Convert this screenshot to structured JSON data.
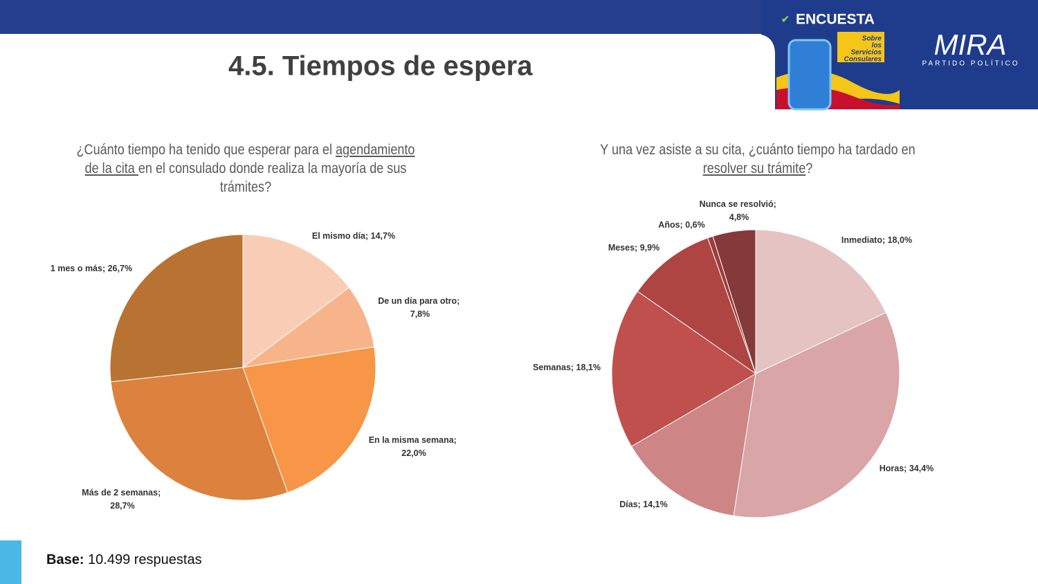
{
  "title": "4.5. Tiempos de espera",
  "footer": {
    "label": "Base:",
    "text": "10.499 respuestas"
  },
  "logo": {
    "survey": "ENCUESTA",
    "tag_lines": [
      "Sobre",
      "los",
      "Servicios",
      "Consulares"
    ],
    "brand": "MIRA",
    "brand_sub": "PARTIDO POLÍTICO"
  },
  "chart_data": [
    {
      "type": "pie",
      "subtitle_parts": [
        {
          "text": "¿Cuánto tiempo ha tenido que esperar para el ",
          "underline": false
        },
        {
          "text": "agendamiento de la cita ",
          "underline": true
        },
        {
          "text": "en el consulado donde realiza la mayoría de sus trámites?",
          "underline": false
        }
      ],
      "categories": [
        "El mismo día",
        "De un día para otro",
        "En la misma semana",
        "Más de 2 semanas",
        "1 mes o más"
      ],
      "values": [
        14.7,
        7.8,
        22.0,
        28.7,
        26.7
      ],
      "value_labels": [
        "14,7%",
        "7,8%",
        "22,0%",
        "28,7%",
        "26,7%"
      ],
      "label_separator": "; ",
      "colors": [
        "#f9cdb5",
        "#f7b48a",
        "#f79646",
        "#dc823e",
        "#b87333"
      ]
    },
    {
      "type": "pie",
      "subtitle_parts": [
        {
          "text": "Y una vez asiste a su cita, ¿cuánto tiempo ha tardado en ",
          "underline": false
        },
        {
          "text": "resolver su trámite",
          "underline": true
        },
        {
          "text": "?",
          "underline": false
        }
      ],
      "categories": [
        "Inmediato",
        "Horas",
        "Días",
        "Semanas",
        "Meses",
        "Años",
        "Nunca se resolvió"
      ],
      "values": [
        18.0,
        34.4,
        14.1,
        18.1,
        9.9,
        0.6,
        4.8
      ],
      "value_labels": [
        "18,0%",
        "34,4%",
        "14,1%",
        "18,1%",
        "9,9%",
        "0,6%",
        "4,8%"
      ],
      "label_separator": "; ",
      "colors": [
        "#e6c3c3",
        "#d9a5a6",
        "#cd8585",
        "#c0504d",
        "#ae4543",
        "#9b3d3b",
        "#86393a"
      ]
    }
  ]
}
